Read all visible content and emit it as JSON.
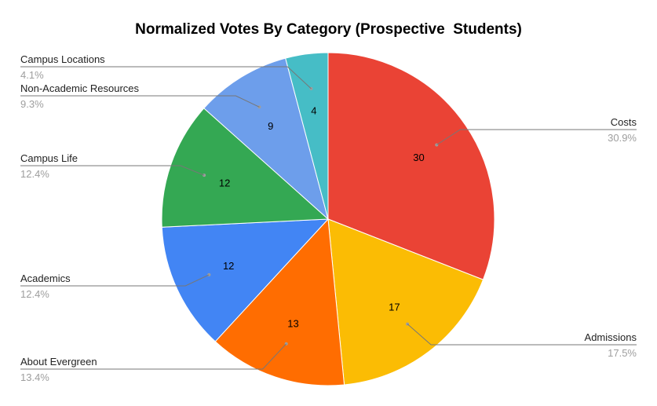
{
  "chart_data": {
    "type": "pie",
    "title": "Normalized Votes By Category (Prospective  Students)",
    "slices": [
      {
        "label": "Costs",
        "value": 30,
        "percent": "30.9%",
        "color": "#ea4335"
      },
      {
        "label": "Admissions",
        "value": 17,
        "percent": "17.5%",
        "color": "#fbbc04"
      },
      {
        "label": "About Evergreen",
        "value": 13,
        "percent": "13.4%",
        "color": "#ff6d01"
      },
      {
        "label": "Academics",
        "value": 12,
        "percent": "12.4%",
        "color": "#4285f4"
      },
      {
        "label": "Campus Life",
        "value": 12,
        "percent": "12.4%",
        "color": "#34a853"
      },
      {
        "label": "Non-Academic Resources",
        "value": 9,
        "percent": "9.3%",
        "color": "#6d9eeb"
      },
      {
        "label": "Campus Locations",
        "value": 4,
        "percent": "4.1%",
        "color": "#46bdc6"
      }
    ],
    "legend": "callouts"
  }
}
